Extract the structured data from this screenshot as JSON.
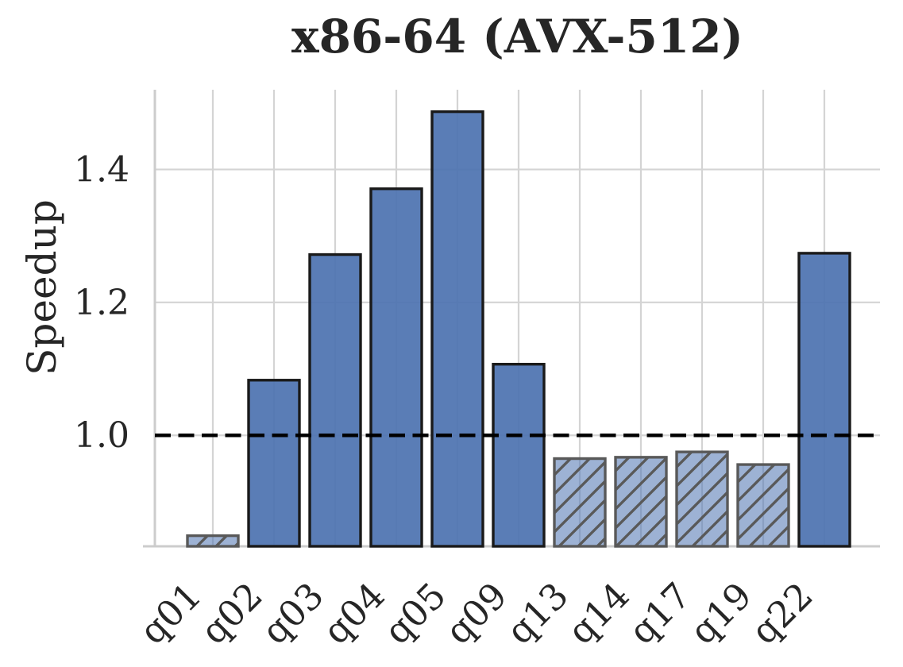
{
  "figure": {
    "background": "#ffffff"
  },
  "chart_data": {
    "type": "bar",
    "title": "x86-64 (AVX-512)",
    "ylabel": "Speedup",
    "xlabel": "",
    "categories": [
      "q01",
      "q02",
      "q03",
      "q04",
      "q05",
      "q09",
      "q13",
      "q14",
      "q17",
      "q19",
      "q22"
    ],
    "values": [
      0.849,
      1.083,
      1.272,
      1.371,
      1.487,
      1.107,
      0.965,
      0.967,
      0.975,
      0.956,
      1.274
    ],
    "hatched": [
      true,
      false,
      false,
      false,
      false,
      false,
      true,
      true,
      true,
      true,
      false
    ],
    "baseline": {
      "value": 1.0,
      "style": "dashed",
      "color": "#000000"
    },
    "ylim": [
      0.833,
      1.52
    ],
    "yticks": [
      1.0,
      1.2,
      1.4
    ],
    "ytick_labels": [
      "1.0",
      "1.2",
      "1.4"
    ],
    "grid": true,
    "legend": "none",
    "colors": {
      "bar_fill": "#4C72B0",
      "solid_bar_opacity": 0.92,
      "hatched_bar_opacity": 0.55,
      "solid_edge": "#1a1a1a",
      "hatch_edge": "#595959",
      "grid": "#d4d4d4",
      "spine": "#cccccc",
      "text": "#262626"
    }
  }
}
